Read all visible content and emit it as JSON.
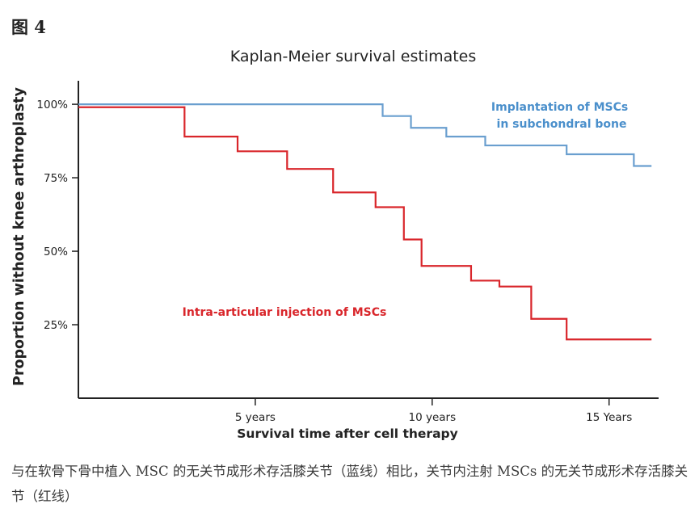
{
  "figure_label": "图 4",
  "caption": "与在软骨下骨中植入 MSC 的无关节成形术存活膝关节（蓝线）相比，关节内注射 MSCs 的无关节成形术存活膝关节（红线）",
  "chart_data": {
    "type": "line",
    "step": true,
    "title": "Kaplan-Meier survival estimates",
    "xlabel": "Survival time after cell therapy",
    "ylabel": "Proportion without knee arthroplasty",
    "xlim": [
      0,
      16.4
    ],
    "ylim": [
      0,
      1.08
    ],
    "x_ticks": [
      {
        "value": 5,
        "label": "5 years"
      },
      {
        "value": 10,
        "label": "10 years"
      },
      {
        "value": 15,
        "label": "15 Years"
      }
    ],
    "y_ticks": [
      {
        "value": 1.0,
        "label": "100%"
      },
      {
        "value": 0.75,
        "label": "75%"
      },
      {
        "value": 0.5,
        "label": "50%"
      },
      {
        "value": 0.25,
        "label": "25%"
      }
    ],
    "grid": false,
    "legend": "inline labels",
    "series": [
      {
        "name": "Implantation of MSCs in subchondral bone",
        "label_lines": [
          "Implantation of MSCs",
          "in subchondral bone"
        ],
        "color": "#6a9fcf",
        "x": [
          0,
          8.6,
          9.4,
          10.4,
          11.5,
          13.8,
          15.7,
          16.2
        ],
        "y": [
          1.0,
          0.96,
          0.92,
          0.89,
          0.86,
          0.83,
          0.79,
          0.79
        ]
      },
      {
        "name": "Intra-articular injection of MSCs",
        "label_lines": [
          "Intra-articular injection of MSCs"
        ],
        "color": "#d9262b",
        "x": [
          0,
          3.0,
          4.5,
          5.9,
          7.2,
          8.4,
          9.2,
          9.7,
          11.1,
          11.9,
          12.8,
          13.8,
          16.2
        ],
        "y": [
          0.99,
          0.89,
          0.84,
          0.78,
          0.7,
          0.65,
          0.54,
          0.45,
          0.4,
          0.38,
          0.27,
          0.2,
          0.2
        ]
      }
    ]
  }
}
